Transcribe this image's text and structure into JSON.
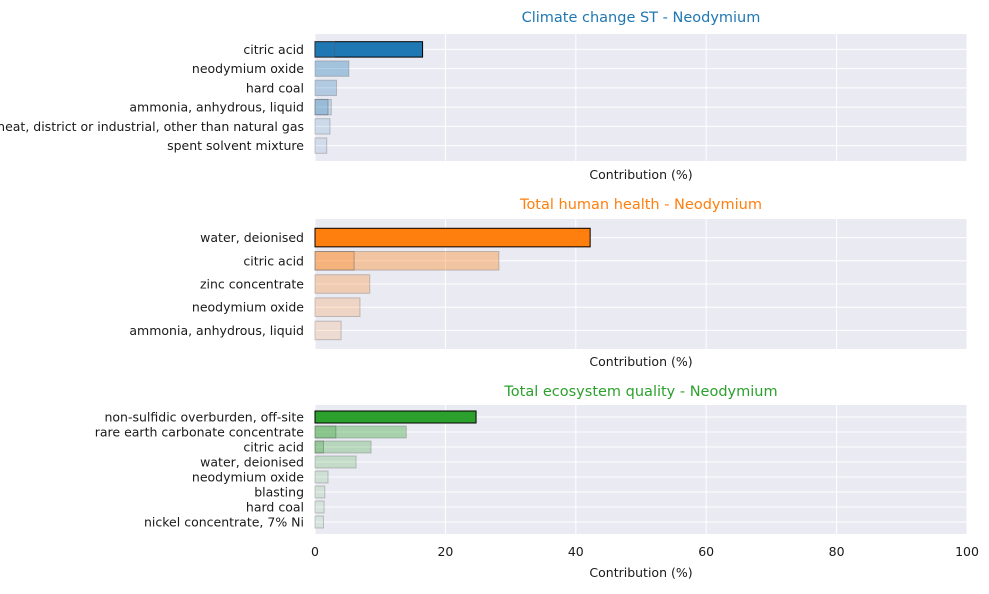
{
  "chart_data": [
    {
      "type": "bar",
      "orientation": "horizontal",
      "title": "Climate change ST - Neodymium",
      "title_color": "#1f77b4",
      "bar_color": "#1f77b4",
      "xlabel": "Contribution (%)",
      "xlim": [
        0,
        100
      ],
      "categories": [
        "citric acid",
        "neodymium oxide",
        "hard coal",
        "ammonia, anhydrous, liquid",
        "heat, district or industrial, other than natural gas",
        "spent solvent mixture"
      ],
      "values": [
        16.5,
        5.2,
        3.3,
        2.5,
        2.3,
        1.8
      ],
      "overlay_values": [
        3.0,
        0,
        0,
        2.0,
        0,
        0
      ]
    },
    {
      "type": "bar",
      "orientation": "horizontal",
      "title": "Total human health - Neodymium",
      "title_color": "#ff7f0e",
      "bar_color": "#ff7f0e",
      "xlabel": "Contribution (%)",
      "xlim": [
        0,
        100
      ],
      "categories": [
        "water, deionised",
        "citric acid",
        "zinc concentrate",
        "neodymium oxide",
        "ammonia, anhydrous, liquid"
      ],
      "values": [
        42.2,
        28.2,
        8.4,
        6.9,
        4.0
      ],
      "overlay_values": [
        0,
        6.0,
        0,
        0,
        0
      ]
    },
    {
      "type": "bar",
      "orientation": "horizontal",
      "title": "Total ecosystem quality - Neodymium",
      "title_color": "#2ca02c",
      "bar_color": "#2ca02c",
      "xlabel": "Contribution (%)",
      "xlim": [
        0,
        100
      ],
      "ticks": [
        0,
        20,
        40,
        60,
        80,
        100
      ],
      "categories": [
        "non-sulfidic overburden, off-site",
        "rare earth carbonate concentrate",
        "citric acid",
        "water, deionised",
        "neodymium oxide",
        "blasting",
        "hard coal",
        "nickel concentrate, 7% Ni"
      ],
      "values": [
        24.7,
        14.0,
        8.6,
        6.3,
        2.0,
        1.5,
        1.4,
        1.3
      ],
      "overlay_values": [
        0,
        3.2,
        1.3,
        0,
        0,
        0,
        0,
        0
      ]
    }
  ]
}
